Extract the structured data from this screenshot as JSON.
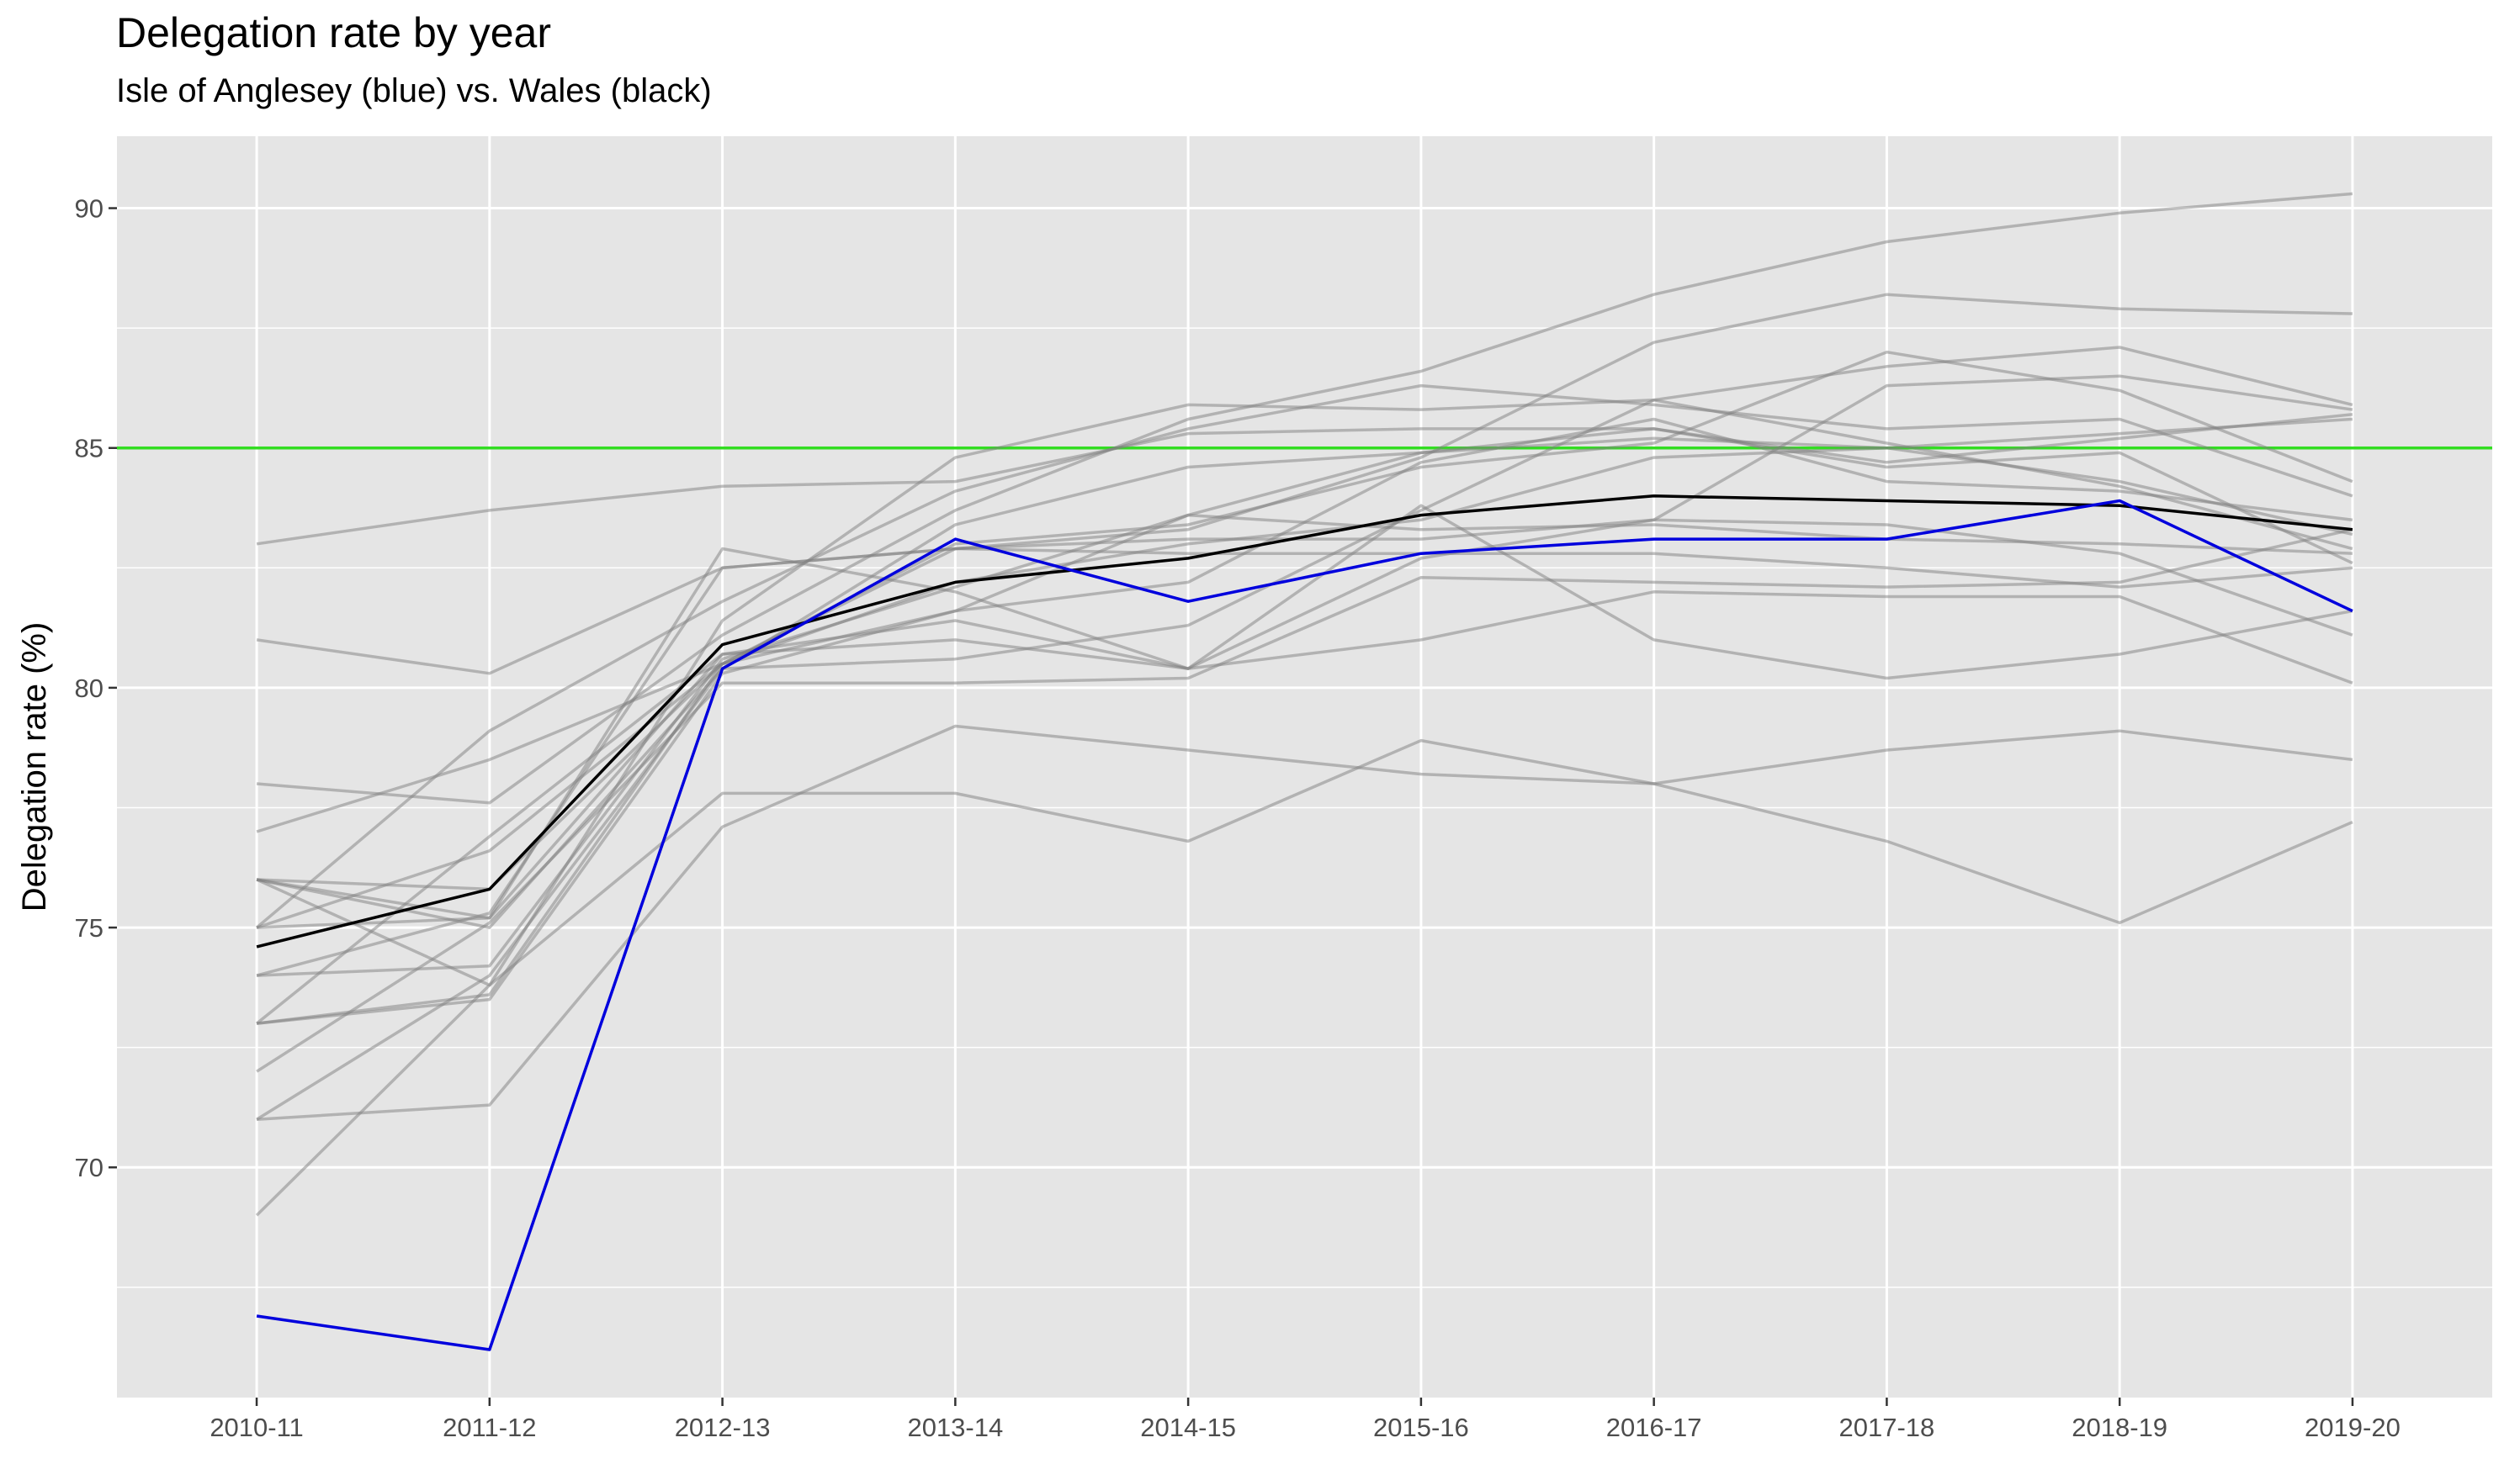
{
  "chart_data": {
    "type": "line",
    "title": "Delegation rate by year",
    "subtitle": "Isle of Anglesey (blue) vs. Wales (black)",
    "xlabel": "",
    "ylabel": "Delegation rate (%)",
    "x": [
      "2010-11",
      "2011-12",
      "2012-13",
      "2013-14",
      "2014-15",
      "2015-16",
      "2016-17",
      "2017-18",
      "2018-19",
      "2019-20"
    ],
    "ylim": [
      65.2,
      91.5
    ],
    "yticks": [
      70,
      75,
      80,
      85,
      90
    ],
    "grid": true,
    "legend": "none",
    "reference_line": {
      "y": 85,
      "color": "#33dd22"
    },
    "colors": {
      "background": "#e5e5e5",
      "grid": "#ffffff",
      "other_authorities": "#808080",
      "wales": "#000000",
      "anglesey": "#0000dd"
    },
    "series": [
      {
        "values": [
          83.0,
          83.7,
          84.2,
          84.3,
          85.3,
          85.4,
          85.4,
          84.7,
          85.2,
          85.7
        ]
      },
      {
        "values": [
          81.0,
          80.3,
          82.5,
          82.9,
          82.8,
          82.8,
          82.8,
          82.5,
          82.1,
          82.5
        ]
      },
      {
        "values": [
          78.0,
          77.6,
          81.1,
          83.7,
          85.6,
          86.6,
          88.2,
          89.3,
          89.9,
          90.3
        ]
      },
      {
        "values": [
          77.0,
          78.5,
          80.5,
          82.9,
          83.3,
          84.8,
          87.2,
          88.2,
          87.9,
          87.8
        ]
      },
      {
        "values": [
          76.0,
          75.2,
          82.9,
          82.0,
          80.4,
          82.7,
          83.5,
          83.4,
          82.8,
          81.1
        ]
      },
      {
        "values": [
          76.0,
          73.8,
          81.4,
          84.8,
          85.9,
          85.8,
          86.0,
          85.1,
          84.2,
          82.9
        ]
      },
      {
        "values": [
          76.0,
          75.8,
          80.5,
          81.6,
          82.2,
          84.7,
          85.6,
          84.3,
          84.1,
          83.5
        ]
      },
      {
        "values": [
          75.0,
          76.6,
          80.5,
          83.0,
          83.4,
          84.6,
          85.1,
          87.0,
          86.2,
          84.3
        ]
      },
      {
        "values": [
          75.0,
          79.1,
          81.8,
          84.1,
          85.4,
          86.3,
          85.9,
          85.4,
          85.6,
          84.0
        ]
      },
      {
        "values": [
          74.0,
          74.2,
          80.6,
          82.1,
          83.6,
          83.3,
          83.4,
          83.1,
          83.0,
          82.8
        ]
      },
      {
        "values": [
          74.0,
          75.3,
          82.5,
          82.9,
          83.1,
          83.1,
          83.5,
          86.3,
          86.5,
          85.8
        ]
      },
      {
        "values": [
          73.0,
          73.5,
          80.3,
          81.6,
          83.6,
          84.9,
          85.2,
          85.0,
          85.3,
          85.6
        ]
      },
      {
        "values": [
          73.0,
          76.9,
          80.7,
          81.0,
          80.4,
          83.8,
          81.0,
          80.2,
          80.7,
          81.6
        ]
      },
      {
        "values": [
          72.0,
          75.1,
          80.1,
          80.1,
          80.2,
          82.3,
          82.2,
          82.1,
          82.2,
          83.3
        ]
      },
      {
        "values": [
          71.0,
          71.3,
          77.1,
          79.2,
          78.7,
          78.2,
          78.0,
          78.7,
          79.1,
          78.5
        ]
      },
      {
        "values": [
          71.0,
          74.0,
          80.4,
          80.6,
          81.3,
          83.7,
          86.0,
          86.7,
          87.1,
          85.9
        ]
      },
      {
        "values": [
          69.0,
          73.8,
          77.8,
          77.8,
          76.8,
          78.9,
          78.0,
          76.8,
          75.1,
          77.2
        ]
      },
      {
        "values": [
          75.0,
          75.2,
          80.7,
          81.4,
          80.4,
          81.0,
          82.0,
          81.9,
          81.9,
          80.1
        ]
      },
      {
        "values": [
          76.0,
          75.0,
          80.4,
          83.4,
          84.6,
          84.9,
          85.4,
          84.6,
          84.9,
          82.6
        ]
      },
      {
        "values": [
          73.0,
          73.6,
          80.5,
          82.2,
          83.0,
          83.5,
          84.8,
          85.0,
          84.3,
          83.2
        ]
      },
      {
        "values": [
          74.6,
          75.8,
          80.9,
          82.2,
          82.7,
          83.6,
          84.0,
          83.9,
          83.8,
          83.3
        ]
      },
      {
        "values": [
          66.9,
          66.2,
          80.4,
          83.1,
          81.8,
          82.8,
          83.1,
          83.1,
          83.9,
          81.6
        ]
      }
    ]
  }
}
